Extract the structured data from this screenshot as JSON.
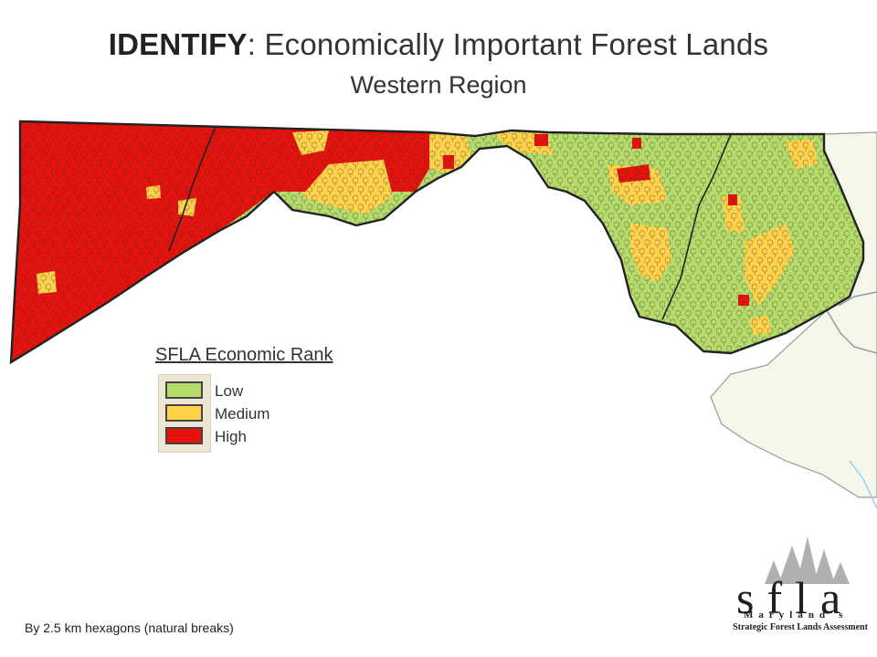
{
  "header": {
    "title_bold": "IDENTIFY",
    "title_rest": ":  Economically Important Forest Lands",
    "subtitle": "Western Region"
  },
  "legend": {
    "title": "SFLA Economic Rank",
    "items": [
      {
        "label": "Low",
        "color": "#b5dc6a"
      },
      {
        "label": "Medium",
        "color": "#ffd24a"
      },
      {
        "label": "High",
        "color": "#e8120c"
      }
    ]
  },
  "footnote": "By 2.5 km hexagons (natural breaks)",
  "logo": {
    "letters": "sfla",
    "line1": "Maryland's",
    "line2": "Strategic Forest Lands Assessment"
  },
  "map_colors": {
    "high": "#e8120c",
    "medium": "#ffd24a",
    "low": "#b5dc6a",
    "outline": "#222222",
    "neighbor_fill": "#f2f6e6",
    "neighbor_outline": "#999999"
  }
}
